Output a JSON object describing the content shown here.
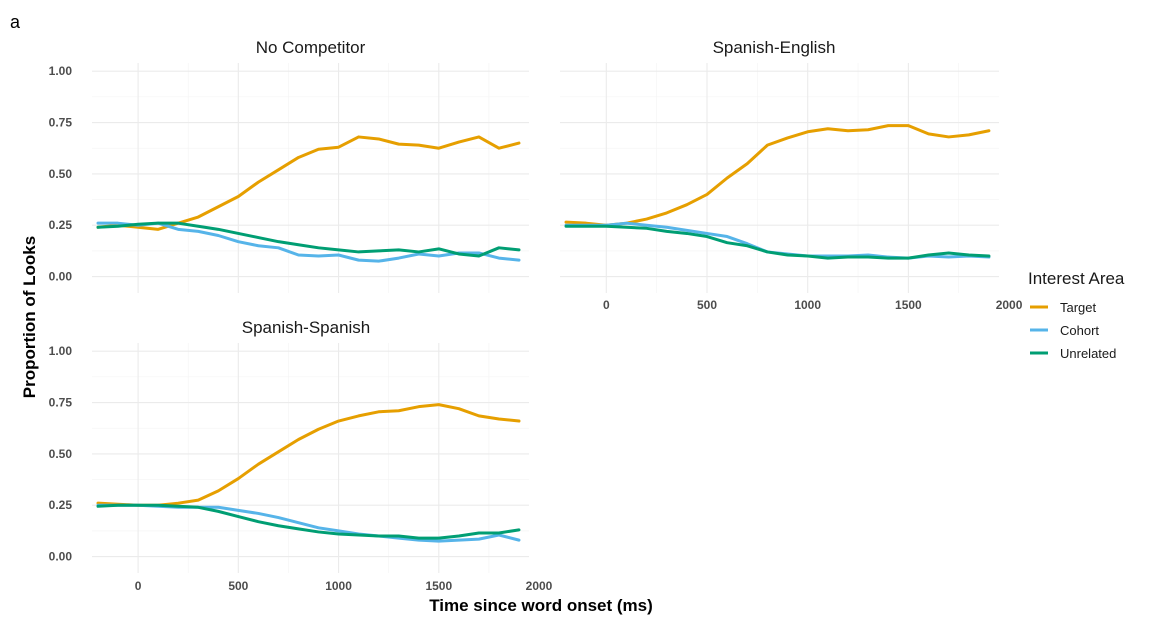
{
  "chart_data": {
    "type": "line",
    "tag": "a",
    "xlabel": "Time since word onset (ms)",
    "ylabel": "Proportion of Looks",
    "xlim": [
      -230,
      1950
    ],
    "ylim": [
      -0.08,
      1.04
    ],
    "x_ticks": [
      0,
      500,
      1000,
      1500,
      2000
    ],
    "y_ticks": [
      0.0,
      0.25,
      0.5,
      0.75,
      1.0
    ],
    "y_tick_labels": [
      "0.00",
      "0.25",
      "0.50",
      "0.75",
      "1.00"
    ],
    "grid": true,
    "legend": {
      "title": "Interest Area",
      "placement": "right",
      "entries": [
        {
          "name": "Target",
          "color": "#E69F00"
        },
        {
          "name": "Cohort",
          "color": "#56B4E9"
        },
        {
          "name": "Unrelated",
          "color": "#009E73"
        }
      ]
    },
    "x": [
      -200,
      -100,
      0,
      100,
      200,
      300,
      400,
      500,
      600,
      700,
      800,
      900,
      1000,
      1100,
      1200,
      1300,
      1400,
      1500,
      1600,
      1700,
      1800,
      1900
    ],
    "panels": [
      {
        "title": "No Competitor",
        "series": [
          {
            "name": "Target",
            "values": [
              0.24,
              0.25,
              0.24,
              0.23,
              0.26,
              0.29,
              0.34,
              0.39,
              0.46,
              0.52,
              0.58,
              0.62,
              0.63,
              0.68,
              0.67,
              0.645,
              0.64,
              0.625,
              0.655,
              0.68,
              0.625,
              0.65
            ]
          },
          {
            "name": "Cohort",
            "values": [
              0.26,
              0.26,
              0.25,
              0.26,
              0.23,
              0.22,
              0.2,
              0.17,
              0.15,
              0.14,
              0.105,
              0.1,
              0.105,
              0.08,
              0.075,
              0.09,
              0.11,
              0.1,
              0.115,
              0.115,
              0.09,
              0.08
            ]
          },
          {
            "name": "Unrelated",
            "values": [
              0.24,
              0.245,
              0.255,
              0.26,
              0.26,
              0.245,
              0.23,
              0.21,
              0.19,
              0.17,
              0.155,
              0.14,
              0.13,
              0.12,
              0.125,
              0.13,
              0.12,
              0.135,
              0.11,
              0.1,
              0.14,
              0.13
            ]
          }
        ]
      },
      {
        "title": "Spanish-English",
        "series": [
          {
            "name": "Target",
            "values": [
              0.265,
              0.26,
              0.25,
              0.26,
              0.28,
              0.31,
              0.35,
              0.4,
              0.48,
              0.55,
              0.64,
              0.675,
              0.705,
              0.72,
              0.71,
              0.715,
              0.735,
              0.735,
              0.695,
              0.68,
              0.69,
              0.71
            ]
          },
          {
            "name": "Cohort",
            "values": [
              0.25,
              0.25,
              0.25,
              0.26,
              0.25,
              0.24,
              0.225,
              0.21,
              0.195,
              0.16,
              0.12,
              0.11,
              0.1,
              0.1,
              0.1,
              0.105,
              0.095,
              0.09,
              0.1,
              0.095,
              0.1,
              0.095
            ]
          },
          {
            "name": "Unrelated",
            "values": [
              0.245,
              0.245,
              0.245,
              0.24,
              0.235,
              0.22,
              0.21,
              0.195,
              0.165,
              0.15,
              0.12,
              0.105,
              0.1,
              0.09,
              0.095,
              0.095,
              0.09,
              0.09,
              0.105,
              0.115,
              0.105,
              0.1
            ]
          }
        ]
      },
      {
        "title": "Spanish-Spanish",
        "series": [
          {
            "name": "Target",
            "values": [
              0.26,
              0.255,
              0.25,
              0.25,
              0.26,
              0.275,
              0.32,
              0.38,
              0.45,
              0.51,
              0.57,
              0.62,
              0.66,
              0.685,
              0.705,
              0.71,
              0.73,
              0.74,
              0.72,
              0.685,
              0.67,
              0.66
            ]
          },
          {
            "name": "Cohort",
            "values": [
              0.25,
              0.25,
              0.25,
              0.245,
              0.24,
              0.24,
              0.24,
              0.225,
              0.21,
              0.19,
              0.165,
              0.14,
              0.125,
              0.11,
              0.1,
              0.09,
              0.08,
              0.075,
              0.08,
              0.085,
              0.105,
              0.08
            ]
          },
          {
            "name": "Unrelated",
            "values": [
              0.245,
              0.25,
              0.25,
              0.25,
              0.245,
              0.24,
              0.22,
              0.195,
              0.17,
              0.15,
              0.135,
              0.12,
              0.11,
              0.105,
              0.1,
              0.1,
              0.09,
              0.09,
              0.1,
              0.115,
              0.115,
              0.13
            ]
          }
        ]
      }
    ]
  }
}
